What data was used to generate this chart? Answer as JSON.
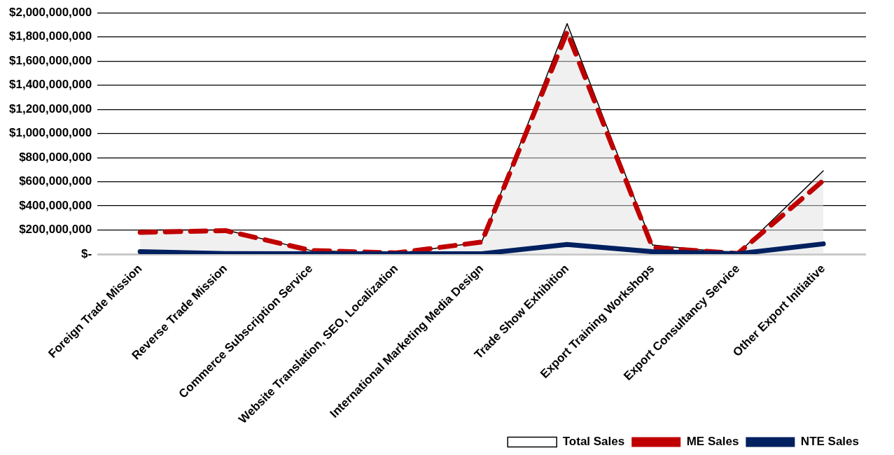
{
  "chart_data": {
    "type": "line",
    "categories": [
      "Foreign Trade Mission",
      "Reverse Trade Mission",
      "Commerce Subscription Service",
      "Website Translation, SEO, Localization",
      "International Marketing Media Design",
      "Trade Show Exhibition",
      "Export Training Workshops",
      "Export Consultancy Service",
      "Other Export Initiative"
    ],
    "series": [
      {
        "name": "Total Sales",
        "type": "area",
        "color": "#000000",
        "values": [
          200000000,
          200000000,
          30000000,
          5000000,
          100000000,
          1910000000,
          75000000,
          5000000,
          690000000
        ]
      },
      {
        "name": "ME Sales",
        "type": "line",
        "color": "#c00000",
        "line_style": "dashed",
        "values": [
          180000000,
          195000000,
          30000000,
          10000000,
          100000000,
          1840000000,
          55000000,
          5000000,
          610000000
        ]
      },
      {
        "name": "NTE Sales",
        "type": "line",
        "color": "#002060",
        "line_style": "solid",
        "values": [
          20000000,
          5000000,
          3000000,
          3000000,
          3000000,
          80000000,
          20000000,
          3000000,
          85000000
        ]
      }
    ],
    "ylim": [
      0,
      2000000000
    ],
    "yticks": [
      {
        "value": 0,
        "label": "$-"
      },
      {
        "value": 200000000,
        "label": "$200,000,000"
      },
      {
        "value": 400000000,
        "label": "$400,000,000"
      },
      {
        "value": 600000000,
        "label": "$600,000,000"
      },
      {
        "value": 800000000,
        "label": "$800,000,000"
      },
      {
        "value": 1000000000,
        "label": "$1,000,000,000"
      },
      {
        "value": 1200000000,
        "label": "$1,200,000,000"
      },
      {
        "value": 1400000000,
        "label": "$1,400,000,000"
      },
      {
        "value": 1600000000,
        "label": "$1,600,000,000"
      },
      {
        "value": 1800000000,
        "label": "$1,800,000,000"
      },
      {
        "value": 2000000000,
        "label": "$2,000,000,000"
      }
    ],
    "grid": "y",
    "legend": "bottom right",
    "marker": "none"
  }
}
